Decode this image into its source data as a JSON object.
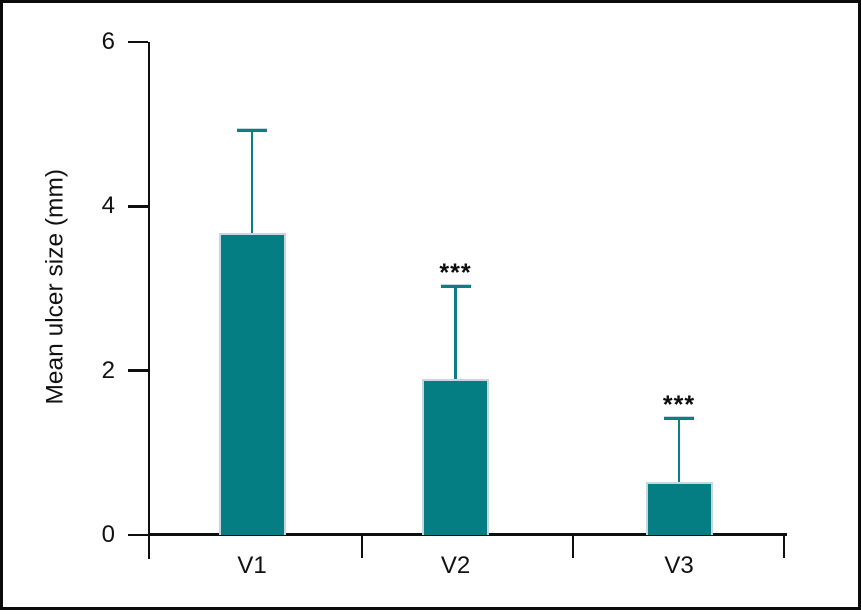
{
  "chart_data": {
    "type": "bar",
    "title": "",
    "categories": [
      "V1",
      "V2",
      "V3"
    ],
    "values": [
      3.67,
      1.9,
      0.65
    ],
    "error_upper": [
      4.93,
      3.03,
      1.43
    ],
    "significance": [
      "",
      "***",
      "***"
    ],
    "xlabel": "",
    "ylabel": "Mean ulcer size (mm)",
    "yticks": [
      0,
      2,
      4,
      6
    ],
    "ylim": [
      0,
      6
    ],
    "grid": false,
    "legend": false,
    "bar_color": "#047e82",
    "bar_outline_color": "#c6d8de",
    "error_bar_color": "#0e7e86",
    "axis_color": "#0f0f0f",
    "text_color": "#111111",
    "background": "#ffffff"
  }
}
